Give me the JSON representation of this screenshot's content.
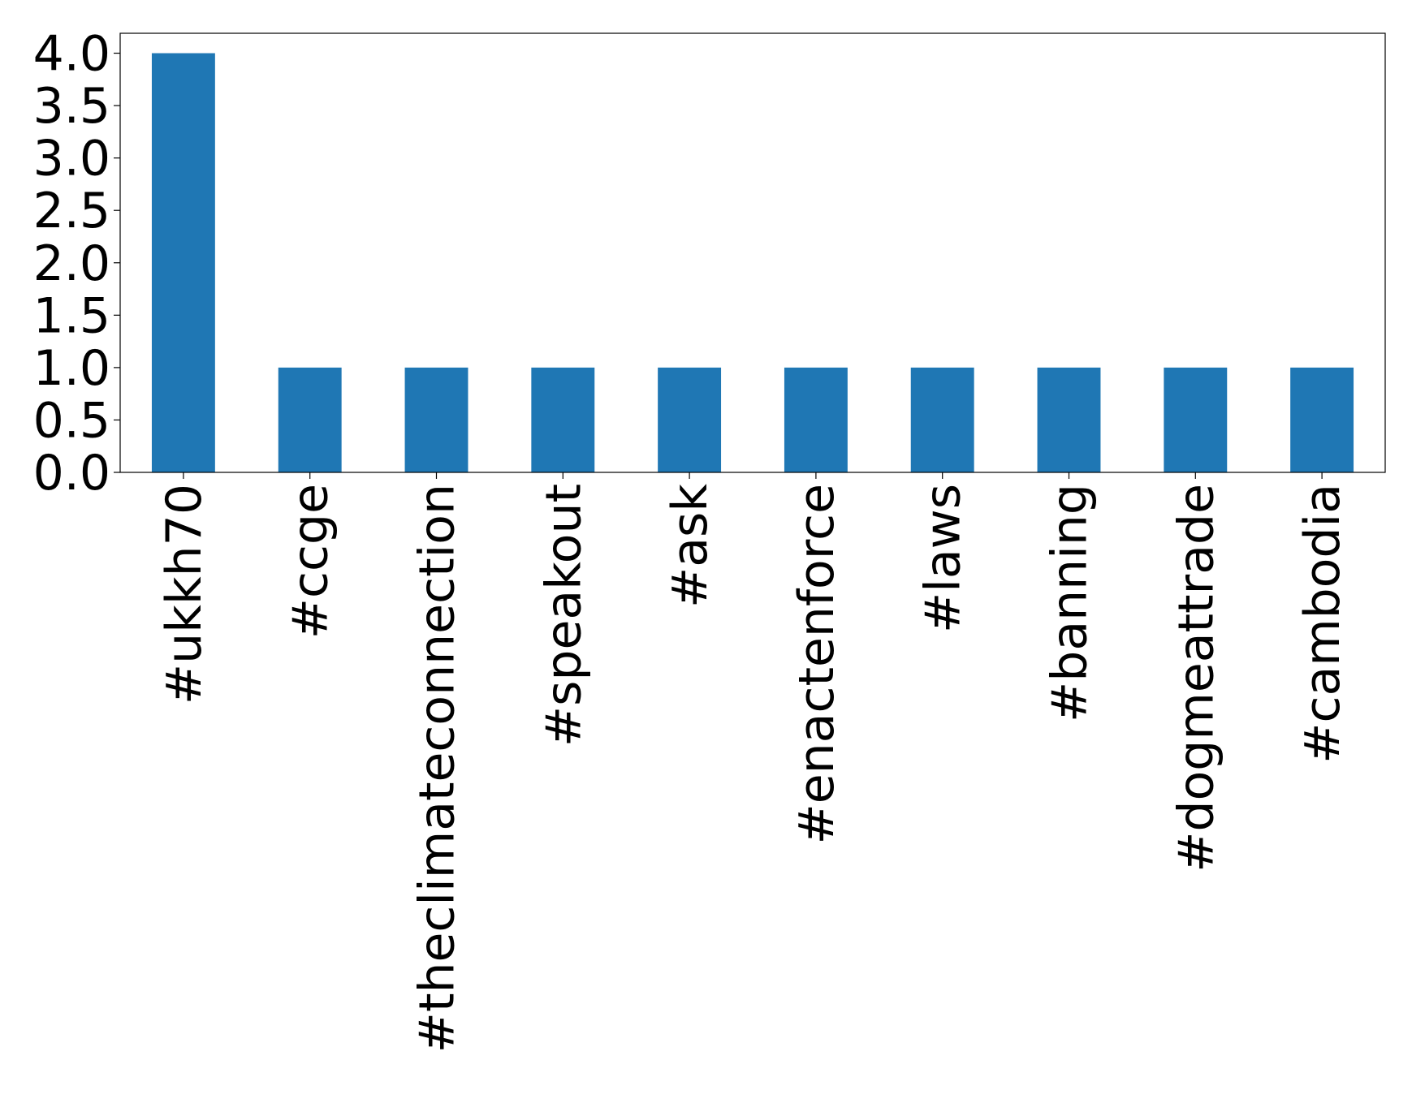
{
  "chart_data": {
    "type": "bar",
    "categories": [
      "#ukkh70",
      "#ccge",
      "#theclimateconnection",
      "#speakout",
      "#ask",
      "#enactenforce",
      "#laws",
      "#banning",
      "#dogmeattrade",
      "#cambodia"
    ],
    "values": [
      4,
      1,
      1,
      1,
      1,
      1,
      1,
      1,
      1,
      1
    ],
    "color": "#1f77b4",
    "ylim": [
      0,
      4.19
    ],
    "yticks": [
      {
        "value": 0,
        "label": "0.0"
      },
      0.5,
      {
        "value": 1,
        "label": "1.0"
      },
      1.5,
      {
        "value": 2,
        "label": "2.0"
      },
      2.5,
      {
        "value": 3,
        "label": "3.0"
      },
      3.5,
      {
        "value": 4,
        "label": "4.0"
      }
    ],
    "grid": false
  }
}
